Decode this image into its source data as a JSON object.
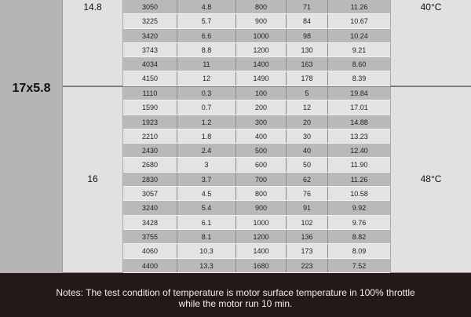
{
  "motor_size": "17x5.8",
  "groups": [
    {
      "voltage": "14.8",
      "temperature": "40°C",
      "rows": [
        [
          "3050",
          "4.8",
          "800",
          "71",
          "11.26"
        ],
        [
          "3225",
          "5.7",
          "900",
          "84",
          "10.67"
        ],
        [
          "3420",
          "6.6",
          "1000",
          "98",
          "10.24"
        ],
        [
          "3743",
          "8.8",
          "1200",
          "130",
          "9.21"
        ],
        [
          "4034",
          "11",
          "1400",
          "163",
          "8.60"
        ],
        [
          "4150",
          "12",
          "1490",
          "178",
          "8.39"
        ]
      ]
    },
    {
      "voltage": "16",
      "temperature": "48°C",
      "rows": [
        [
          "1110",
          "0.3",
          "100",
          "5",
          "19.84"
        ],
        [
          "1590",
          "0.7",
          "200",
          "12",
          "17.01"
        ],
        [
          "1923",
          "1.2",
          "300",
          "20",
          "14.88"
        ],
        [
          "2210",
          "1.8",
          "400",
          "30",
          "13.23"
        ],
        [
          "2430",
          "2.4",
          "500",
          "40",
          "12.40"
        ],
        [
          "2680",
          "3",
          "600",
          "50",
          "11.90"
        ],
        [
          "2830",
          "3.7",
          "700",
          "62",
          "11.26"
        ],
        [
          "3057",
          "4.5",
          "800",
          "76",
          "10.58"
        ],
        [
          "3240",
          "5.4",
          "900",
          "91",
          "9.92"
        ],
        [
          "3428",
          "6.1",
          "1000",
          "102",
          "9.76"
        ],
        [
          "3755",
          "8.1",
          "1200",
          "136",
          "8.82"
        ],
        [
          "4060",
          "10.3",
          "1400",
          "173",
          "8.09"
        ],
        [
          "4400",
          "13.3",
          "1680",
          "223",
          "7.52"
        ]
      ]
    }
  ],
  "notes": {
    "line1": "Notes: The test condition of temperature is motor surface temperature in 100% throttle",
    "line2": "while the motor run 10 min."
  }
}
